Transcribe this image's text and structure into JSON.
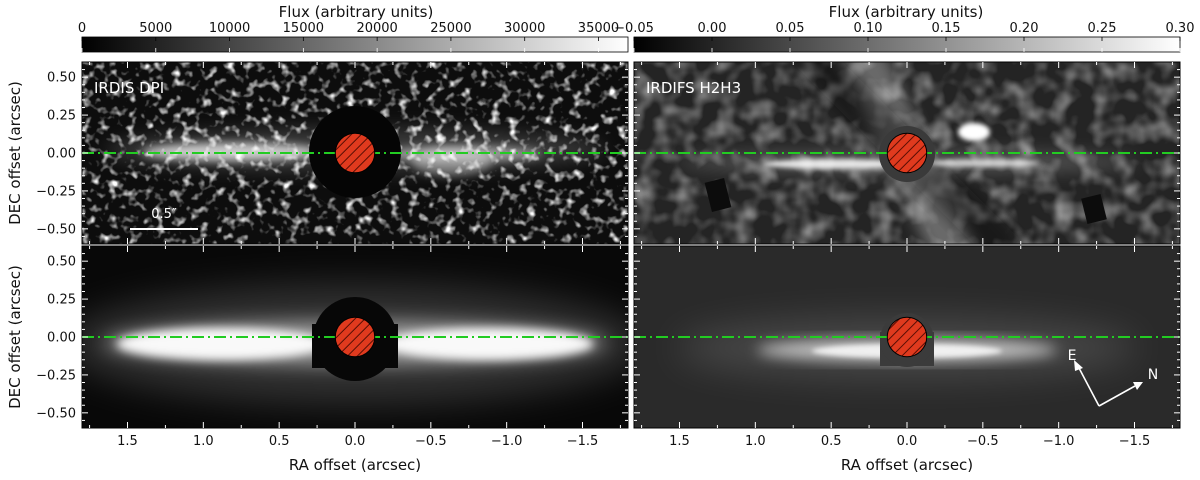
{
  "chart_data": {
    "type": "heatmap",
    "xlabel": "RA offset (arcsec)",
    "ylabel": "DEC offset (arcsec)",
    "xlim": [
      1.8,
      -1.8
    ],
    "ylim": [
      -0.6,
      0.6
    ],
    "xticks": [
      1.5,
      1.0,
      0.5,
      0.0,
      -0.5,
      -1.0,
      -1.5
    ],
    "xtick_labels": [
      "1.5",
      "1.0",
      "0.5",
      "0.0",
      "−0.5",
      "−1.0",
      "−1.5"
    ],
    "yticks": [
      0.5,
      0.25,
      0.0,
      -0.25,
      -0.5
    ],
    "ytick_labels": [
      "0.50",
      "0.25",
      "0.00",
      "−0.25",
      "−0.50"
    ],
    "midplane_y": 0.0,
    "midplane_color": "#22cc22",
    "mask_color": "#e03a1e",
    "mask_radius_arcsec": 0.13,
    "colorbars": [
      {
        "title": "Flux (arbitrary units)",
        "range": [
          0,
          37000
        ],
        "ticks": [
          0,
          5000,
          10000,
          15000,
          20000,
          25000,
          30000,
          35000
        ],
        "tick_labels": [
          "0",
          "5000",
          "10000",
          "15000",
          "20000",
          "25000",
          "30000",
          "35000"
        ]
      },
      {
        "title": "Flux (arbitrary units)",
        "range": [
          -0.05,
          0.3
        ],
        "ticks": [
          -0.05,
          0.0,
          0.05,
          0.1,
          0.15,
          0.2,
          0.25,
          0.3
        ],
        "tick_labels": [
          "−0.05",
          "0.00",
          "0.05",
          "0.10",
          "0.15",
          "0.20",
          "0.25",
          "0.30"
        ]
      }
    ],
    "panels": [
      {
        "id": "irdis-obs",
        "label": "IRDIS DPI",
        "kind": "observation"
      },
      {
        "id": "irdifs-obs",
        "label": "IRDIFS H2H3",
        "kind": "observation"
      },
      {
        "id": "irdis-model",
        "label": "",
        "kind": "model"
      },
      {
        "id": "irdifs-model",
        "label": "",
        "kind": "model"
      }
    ],
    "scalebar": {
      "label": "0.5″",
      "length_arcsec": 0.5
    },
    "compass": {
      "east": "E",
      "north": "N"
    }
  }
}
